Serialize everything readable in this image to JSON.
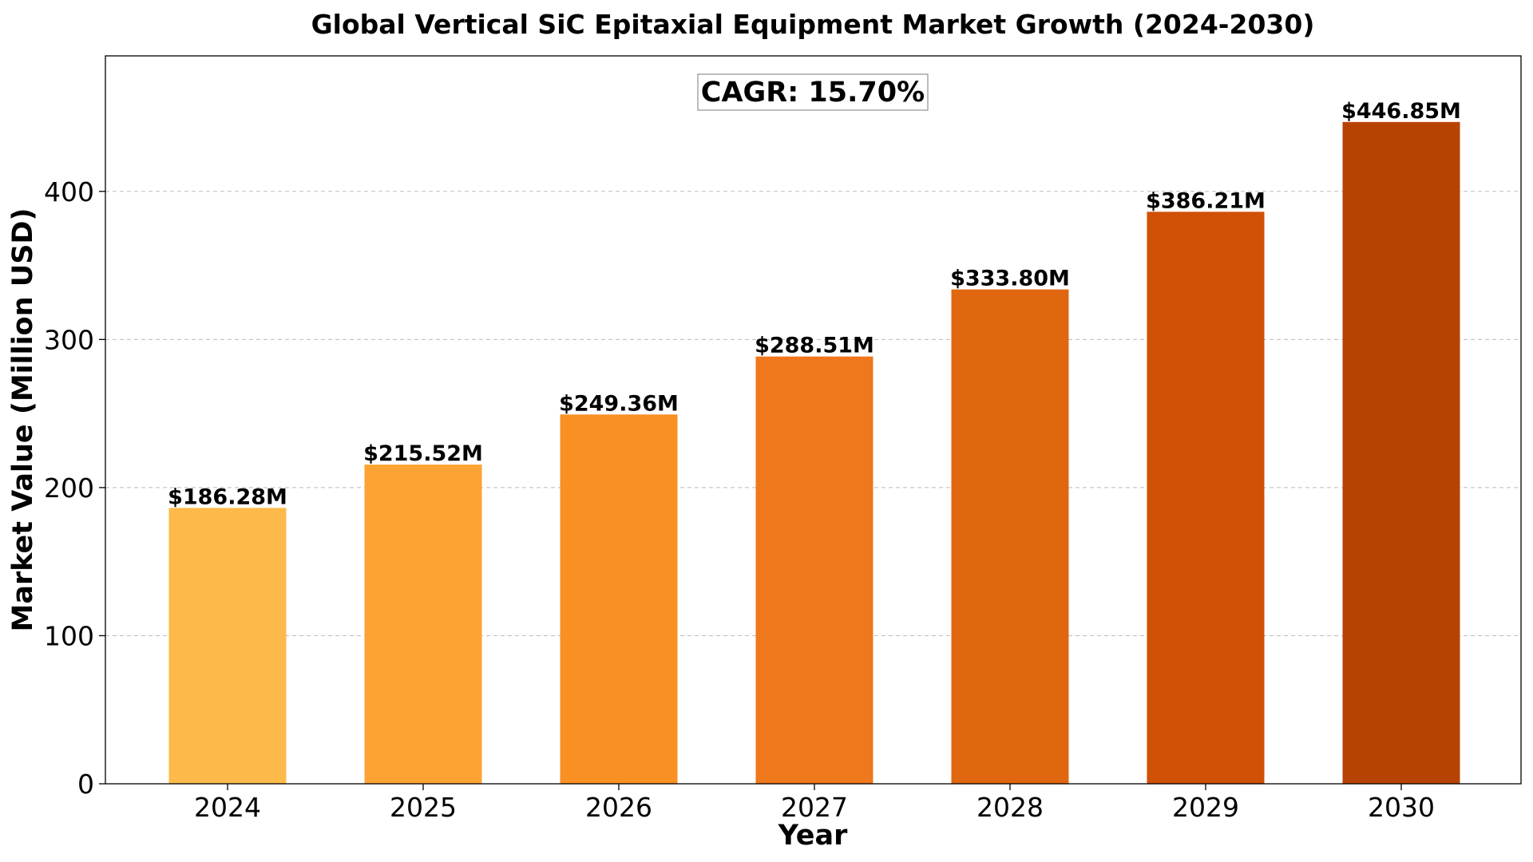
{
  "chart_data": {
    "type": "bar",
    "title": "Global Vertical SiC Epitaxial Equipment Market Growth (2024-2030)",
    "xlabel": "Year",
    "ylabel": "Market Value (Million USD)",
    "categories": [
      "2024",
      "2025",
      "2026",
      "2027",
      "2028",
      "2029",
      "2030"
    ],
    "values": [
      186.28,
      215.52,
      249.36,
      288.51,
      333.8,
      386.21,
      446.85
    ],
    "data_labels": [
      "$186.28M",
      "$215.52M",
      "$249.36M",
      "$288.51M",
      "$333.80M",
      "$386.21M",
      "$446.85M"
    ],
    "bar_colors": [
      "#FDB94A",
      "#FCA333",
      "#F89024",
      "#EF771C",
      "#E16610",
      "#D05005",
      "#B74303"
    ],
    "ylim": [
      0,
      491.5
    ],
    "yticks": [
      0,
      100,
      200,
      300,
      400
    ],
    "grid": true,
    "annotation": "CAGR: 15.70%"
  }
}
